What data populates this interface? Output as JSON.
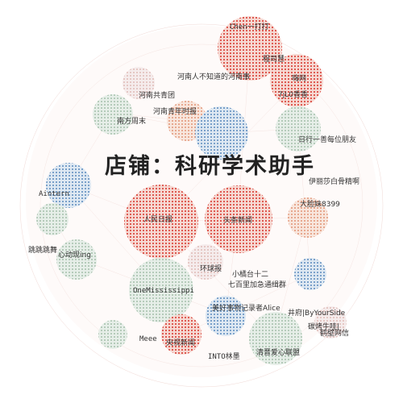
{
  "watermark": "店铺：科研学术助手",
  "nodes": [
    {
      "label": "Chen一打打"
    },
    {
      "label": "程司慧"
    },
    {
      "label": "河南人不知道的河南事"
    },
    {
      "label": "嗨网"
    },
    {
      "label": "河南共青团"
    },
    {
      "label": "7jL0香香"
    },
    {
      "label": "河南青年时报"
    },
    {
      "label": "南方周末"
    },
    {
      "label": "日行一善每位朋友"
    },
    {
      "label": "伊丽莎白骨精啊"
    },
    {
      "label": "Aintern"
    },
    {
      "label": "大脸妹8399"
    },
    {
      "label": "人民日报"
    },
    {
      "label": "头条新闻"
    },
    {
      "label": "跳跳跳舞"
    },
    {
      "label": "心动现ing"
    },
    {
      "label": "环球报"
    },
    {
      "label": "小橘台十二"
    },
    {
      "label": "七百里加急通缉群"
    },
    {
      "label": "OneMississippi"
    },
    {
      "label": "美好事物记录者Alice"
    },
    {
      "label": "井府|ByYourSide"
    },
    {
      "label": "碳烤牛哇|"
    },
    {
      "label": "鹤壁网信"
    },
    {
      "label": "Meee"
    },
    {
      "label": "央视新闻"
    },
    {
      "label": "INTO林墨"
    },
    {
      "label": "清晋爱心联盟"
    }
  ]
}
